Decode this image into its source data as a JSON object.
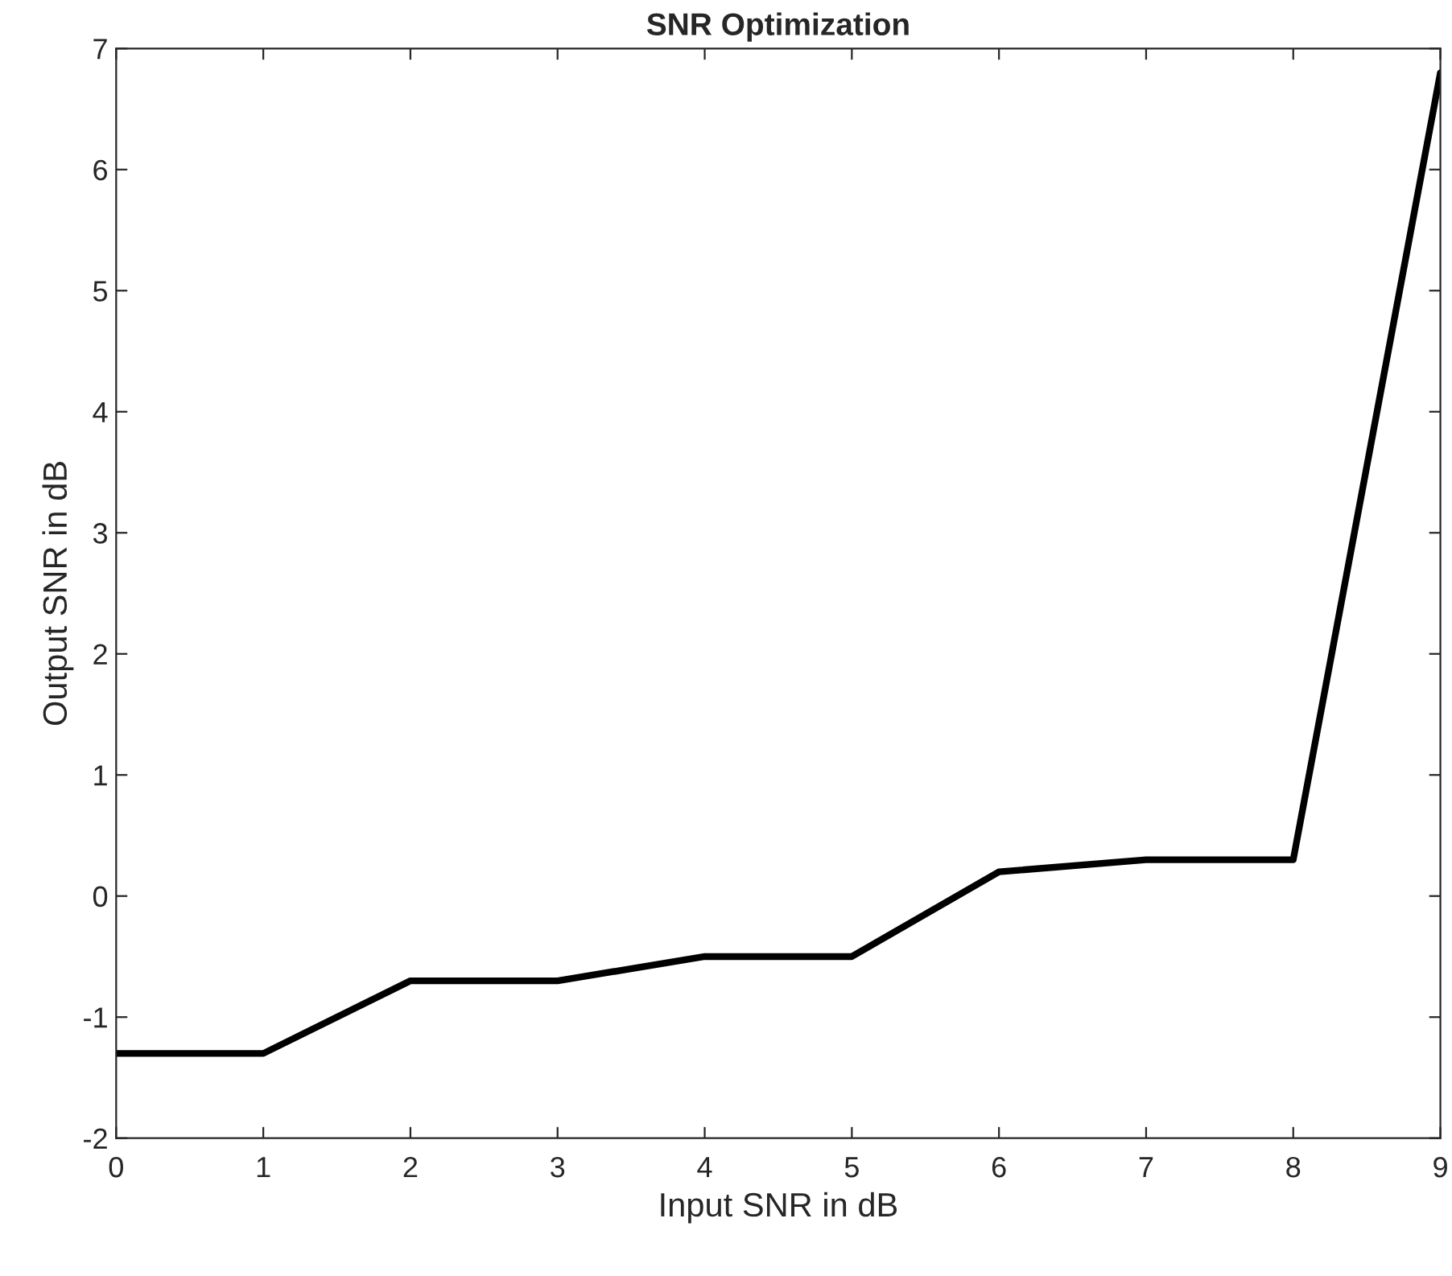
{
  "chart_data": {
    "type": "line",
    "title": "SNR Optimization",
    "xlabel": "Input SNR in dB",
    "ylabel": "Output SNR in dB",
    "x": [
      0,
      1,
      2,
      3,
      4,
      5,
      6,
      7,
      8,
      9
    ],
    "series": [
      {
        "color": "#000000",
        "values": [
          -1.3,
          -1.3,
          -0.7,
          -0.7,
          -0.5,
          -0.5,
          0.2,
          0.3,
          0.3,
          6.8
        ]
      }
    ],
    "xlim": [
      0,
      9
    ],
    "xticks": [
      0,
      1,
      2,
      3,
      4,
      5,
      6,
      7,
      8,
      9
    ],
    "ylim": [
      -2,
      7
    ],
    "yticks": [
      -2,
      -1,
      0,
      1,
      2,
      3,
      4,
      5,
      6,
      7
    ],
    "grid": false,
    "legend": false,
    "marker": "none",
    "line_style": "solid"
  }
}
